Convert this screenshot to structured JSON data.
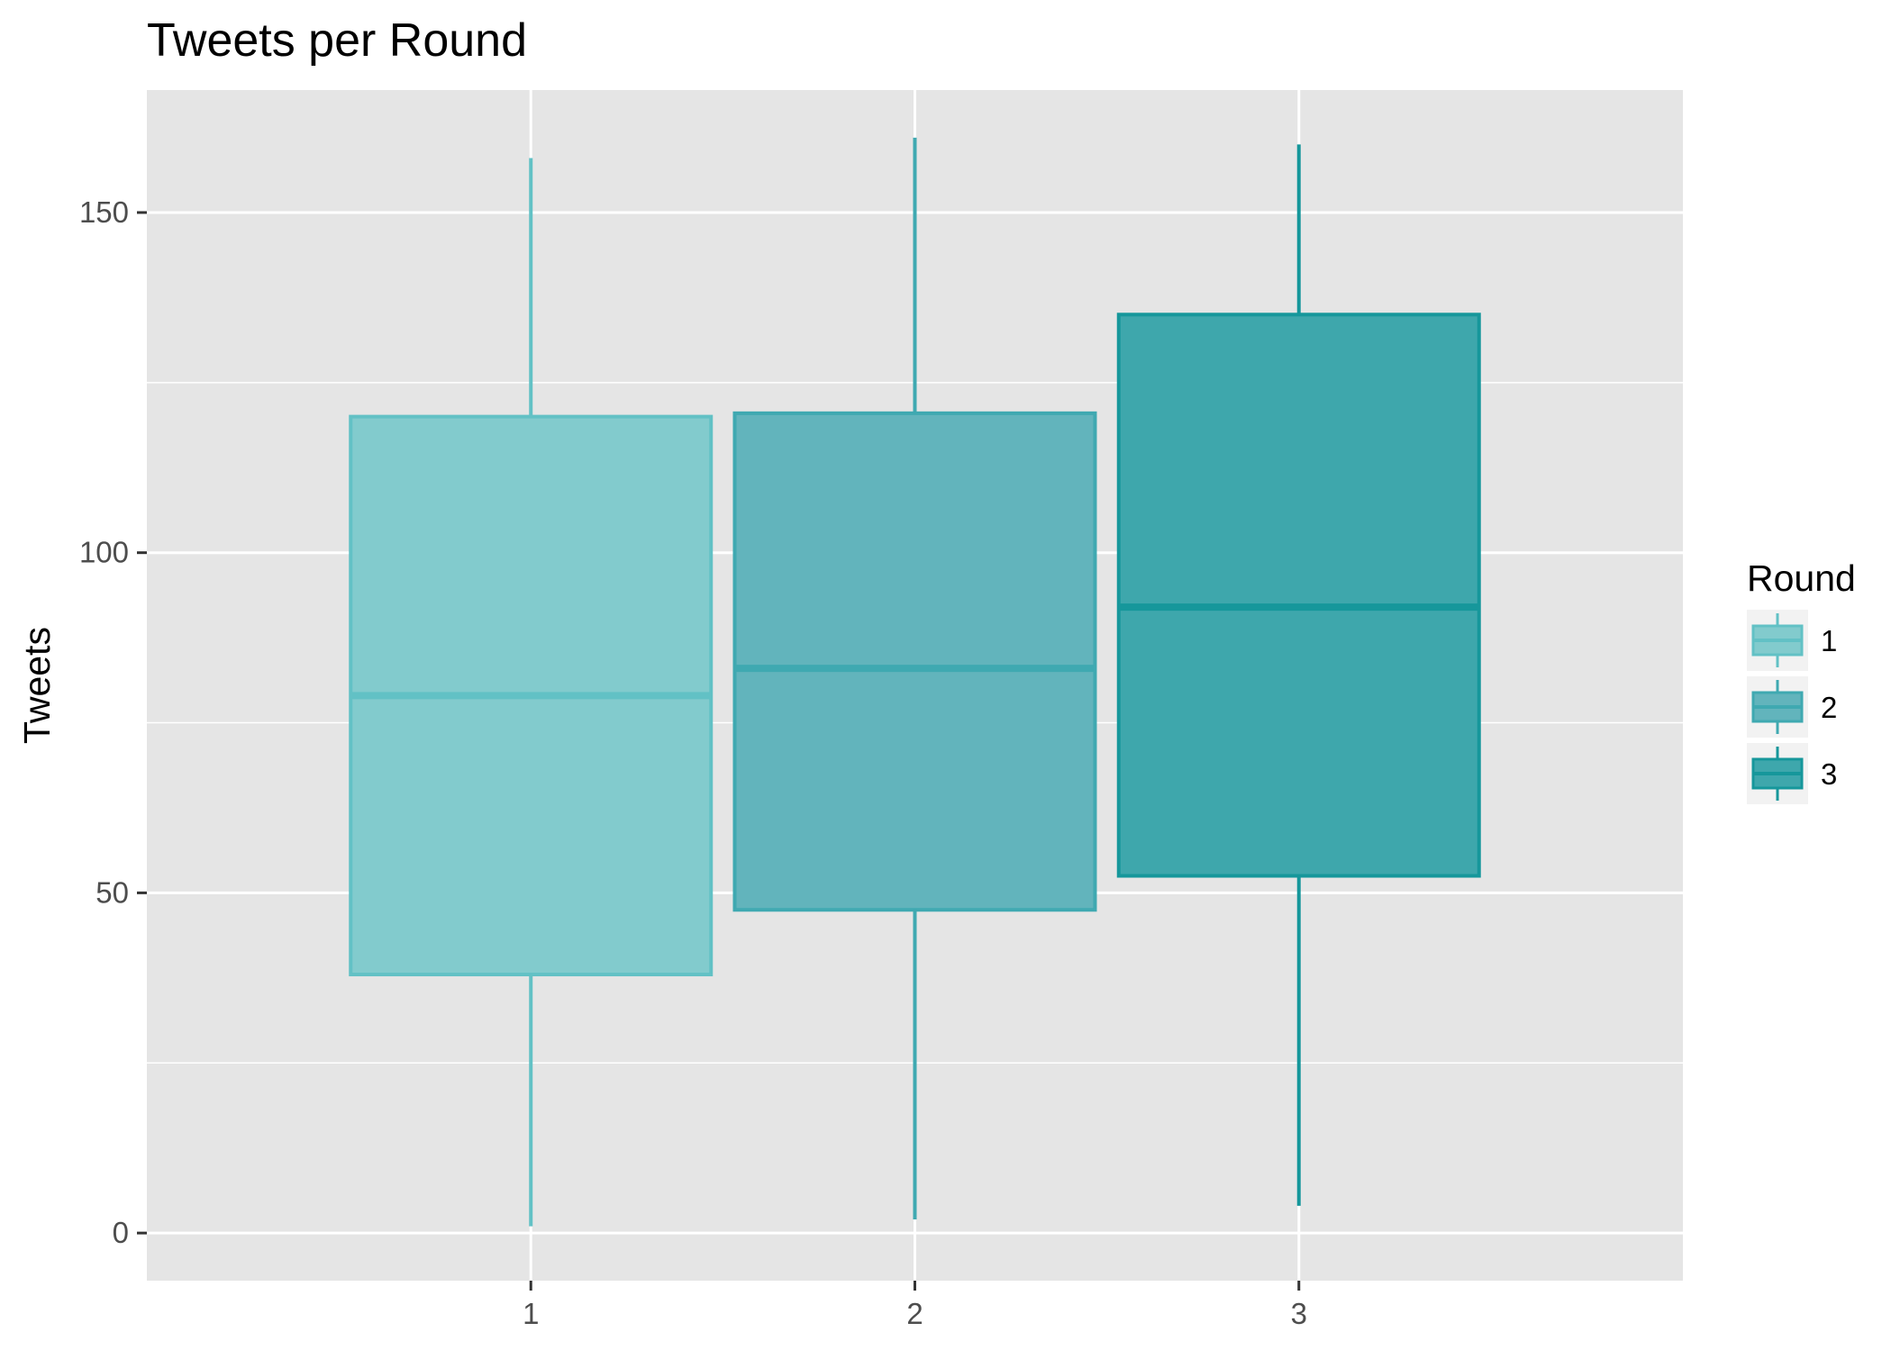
{
  "chart_data": {
    "type": "boxplot",
    "title": "Tweets per Round",
    "xlabel": "",
    "ylabel": "Tweets",
    "ylim": [
      -7,
      168
    ],
    "y_ticks": [
      0,
      50,
      100,
      150
    ],
    "grid": true,
    "legend": {
      "title": "Round",
      "placement": "right",
      "items": [
        "1",
        "2",
        "3"
      ]
    },
    "categories": [
      "1",
      "2",
      "3"
    ],
    "boxes": [
      {
        "name": "1",
        "min": 1,
        "q1": 38,
        "median": 79,
        "q3": 120,
        "max": 158,
        "fill": "#82cbcd",
        "stroke": "#62c1c5"
      },
      {
        "name": "2",
        "min": 2,
        "q1": 47.5,
        "median": 83,
        "q3": 120.5,
        "max": 161,
        "fill": "#62b4bc",
        "stroke": "#3fa9b1"
      },
      {
        "name": "3",
        "min": 4,
        "q1": 52.5,
        "median": 92,
        "q3": 135,
        "max": 160,
        "fill": "#3ea7ac",
        "stroke": "#16979b"
      }
    ],
    "colors": {
      "panel_bg": "#e5e5e5",
      "grid": "#ffffff",
      "tick": "#333333"
    }
  }
}
